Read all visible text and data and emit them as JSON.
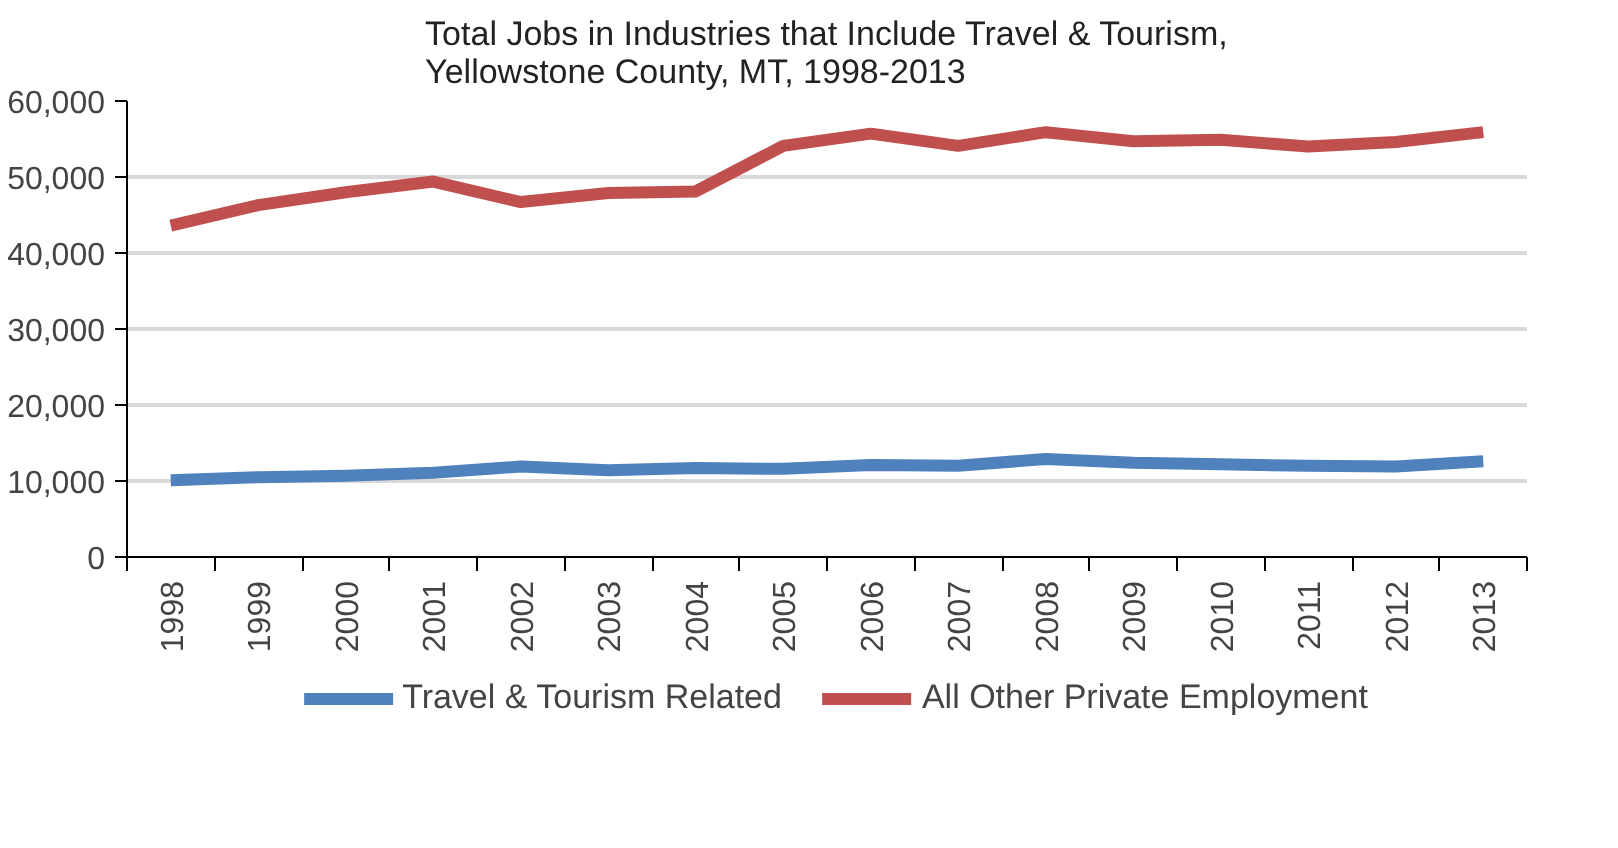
{
  "chart_data": {
    "type": "line",
    "title": "Total Jobs in Industries that Include Travel & Tourism,\nYellowstone County, MT, 1998-2013",
    "categories": [
      "1998",
      "1999",
      "2000",
      "2001",
      "2002",
      "2003",
      "2004",
      "2005",
      "2006",
      "2007",
      "2008",
      "2009",
      "2010",
      "2011",
      "2012",
      "2013"
    ],
    "series": [
      {
        "name": "Travel & Tourism Related",
        "color": "#4f81bd",
        "values": [
          10100,
          10500,
          10700,
          11100,
          11900,
          11400,
          11700,
          11600,
          12100,
          12000,
          12900,
          12400,
          12200,
          12000,
          11900,
          12600
        ]
      },
      {
        "name": "All Other Private Employment",
        "color": "#c0504d",
        "values": [
          43600,
          46300,
          48000,
          49400,
          46700,
          47900,
          48100,
          54100,
          55700,
          54100,
          55900,
          54700,
          54900,
          54000,
          54600,
          55900
        ]
      }
    ],
    "ylim": [
      0,
      60000
    ],
    "yticks": [
      {
        "value": 0,
        "label": "0"
      },
      {
        "value": 10000,
        "label": "10,000"
      },
      {
        "value": 20000,
        "label": "20,000"
      },
      {
        "value": 30000,
        "label": "30,000"
      },
      {
        "value": 40000,
        "label": "40,000"
      },
      {
        "value": 50000,
        "label": "50,000"
      },
      {
        "value": 60000,
        "label": "60,000"
      }
    ],
    "grid": "y",
    "legend": "bottom",
    "marker": "none",
    "line_style": "solid"
  }
}
